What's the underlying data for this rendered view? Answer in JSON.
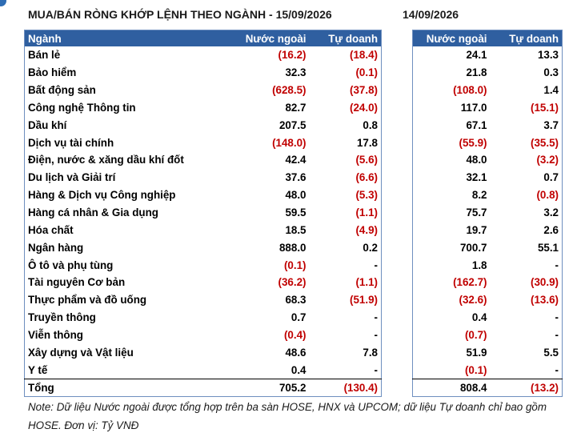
{
  "header": {
    "title_left": "MUA/BÁN RÒNG KHỚP LỆNH THEO NGÀNH - 15/09/2026",
    "title_right": "14/09/2026"
  },
  "table_left": {
    "columns": [
      "Ngành",
      "Nước ngoài",
      "Tự doanh"
    ]
  },
  "table_right": {
    "columns": [
      "Nước ngoài",
      "Tự doanh"
    ]
  },
  "rows": [
    {
      "sector": "Bán lẻ",
      "fo_15": "(16.2)",
      "pt_15": "(18.4)",
      "fo_14": "24.1",
      "pt_14": "13.3"
    },
    {
      "sector": "Bảo hiểm",
      "fo_15": "32.3",
      "pt_15": "(0.1)",
      "fo_14": "21.8",
      "pt_14": "0.3"
    },
    {
      "sector": "Bất động sản",
      "fo_15": "(628.5)",
      "pt_15": "(37.8)",
      "fo_14": "(108.0)",
      "pt_14": "1.4"
    },
    {
      "sector": "Công nghệ Thông tin",
      "fo_15": "82.7",
      "pt_15": "(24.0)",
      "fo_14": "117.0",
      "pt_14": "(15.1)"
    },
    {
      "sector": "Dầu khí",
      "fo_15": "207.5",
      "pt_15": "0.8",
      "fo_14": "67.1",
      "pt_14": "3.7"
    },
    {
      "sector": "Dịch vụ tài chính",
      "fo_15": "(148.0)",
      "pt_15": "17.8",
      "fo_14": "(55.9)",
      "pt_14": "(35.5)"
    },
    {
      "sector": "Điện, nước & xăng dầu khí đốt",
      "fo_15": "42.4",
      "pt_15": "(5.6)",
      "fo_14": "48.0",
      "pt_14": "(3.2)"
    },
    {
      "sector": "Du lịch và Giải trí",
      "fo_15": "37.6",
      "pt_15": "(6.6)",
      "fo_14": "32.1",
      "pt_14": "0.7"
    },
    {
      "sector": "Hàng & Dịch vụ Công nghiệp",
      "fo_15": "48.0",
      "pt_15": "(5.3)",
      "fo_14": "8.2",
      "pt_14": "(0.8)"
    },
    {
      "sector": "Hàng cá nhân & Gia dụng",
      "fo_15": "59.5",
      "pt_15": "(1.1)",
      "fo_14": "75.7",
      "pt_14": "3.2"
    },
    {
      "sector": "Hóa chất",
      "fo_15": "18.5",
      "pt_15": "(4.9)",
      "fo_14": "19.7",
      "pt_14": "2.6"
    },
    {
      "sector": "Ngân hàng",
      "fo_15": "888.0",
      "pt_15": "0.2",
      "fo_14": "700.7",
      "pt_14": "55.1"
    },
    {
      "sector": "Ô tô và phụ tùng",
      "fo_15": "(0.1)",
      "pt_15": "-",
      "fo_14": "1.8",
      "pt_14": "-"
    },
    {
      "sector": "Tài nguyên Cơ bản",
      "fo_15": "(36.2)",
      "pt_15": "(1.1)",
      "fo_14": "(162.7)",
      "pt_14": "(30.9)"
    },
    {
      "sector": "Thực phẩm và đồ uống",
      "fo_15": "68.3",
      "pt_15": "(51.9)",
      "fo_14": "(32.6)",
      "pt_14": "(13.6)"
    },
    {
      "sector": "Truyền thông",
      "fo_15": "0.7",
      "pt_15": "-",
      "fo_14": "0.4",
      "pt_14": "-"
    },
    {
      "sector": "Viễn thông",
      "fo_15": "(0.4)",
      "pt_15": "-",
      "fo_14": "(0.7)",
      "pt_14": "-"
    },
    {
      "sector": "Xây dựng và Vật liệu",
      "fo_15": "48.6",
      "pt_15": "7.8",
      "fo_14": "51.9",
      "pt_14": "5.5"
    },
    {
      "sector": "Y tế",
      "fo_15": "0.4",
      "pt_15": "-",
      "fo_14": "(0.1)",
      "pt_14": "-"
    }
  ],
  "total": {
    "sector": "Tổng",
    "fo_15": "705.2",
    "pt_15": "(130.4)",
    "fo_14": "808.4",
    "pt_14": "(13.2)"
  },
  "note": "Note: Dữ liệu Nước ngoài được tổng hợp trên ba sàn HOSE, HNX và UPCOM; dữ liệu Tự doanh chỉ bao gồm HOSE. Đơn vị: Tỷ VNĐ",
  "colors": {
    "header_bg": "#2f5fa0",
    "negative": "#c00000",
    "border": "#6e8fbf"
  }
}
